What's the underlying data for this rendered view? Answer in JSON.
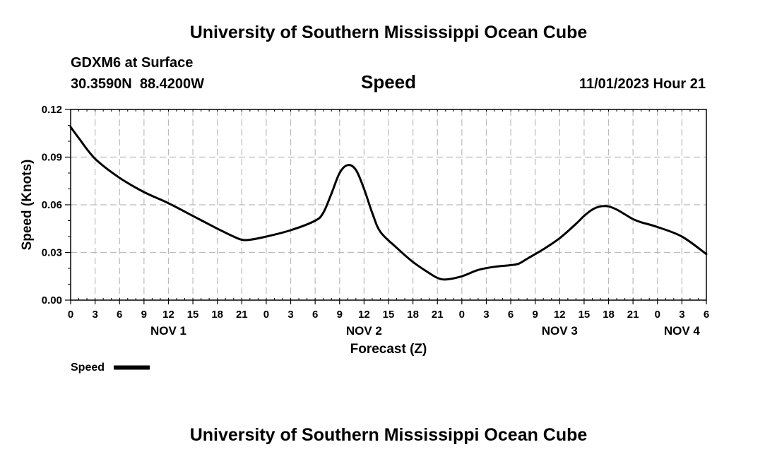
{
  "page": {
    "title": "University of Southern Mississippi Ocean Cube",
    "footer_title": "University of Southern Mississippi Ocean Cube",
    "station": "GDXM6 at Surface",
    "location": "30.3590N  88.4200W",
    "variable": "Speed",
    "run_time": "11/01/2023 Hour 21"
  },
  "chart_data": {
    "type": "line",
    "title": "Speed",
    "xlabel": "Forecast (Z)",
    "ylabel": "Speed (Knots)",
    "x_unit": "hours since Nov 1 00Z",
    "xlim": [
      0,
      78
    ],
    "ylim": [
      0,
      0.12
    ],
    "yticks": [
      "0.00",
      "0.03",
      "0.06",
      "0.09",
      "0.12"
    ],
    "ytick_values": [
      0,
      0.03,
      0.06,
      0.09,
      0.12
    ],
    "xticks": [
      "0",
      "3",
      "6",
      "9",
      "12",
      "15",
      "18",
      "21",
      "0",
      "3",
      "6",
      "9",
      "12",
      "15",
      "18",
      "21",
      "0",
      "3",
      "6",
      "9",
      "12",
      "15",
      "18",
      "21",
      "0",
      "3",
      "6"
    ],
    "day_labels": [
      {
        "label": "NOV 1",
        "hour": 12
      },
      {
        "label": "NOV 2",
        "hour": 36
      },
      {
        "label": "NOV 3",
        "hour": 60
      },
      {
        "label": "NOV 4",
        "hour": 75
      }
    ],
    "grid": true,
    "legend": "bottom-left",
    "series": [
      {
        "name": "Speed",
        "color": "#000000",
        "x": [
          0,
          1,
          3,
          6,
          9,
          12,
          15,
          18,
          20,
          21,
          22,
          24,
          27,
          30,
          31,
          32,
          33,
          34,
          35,
          36,
          37,
          38,
          40,
          42,
          44,
          45,
          46,
          48,
          50,
          52,
          54,
          55,
          56,
          58,
          60,
          62,
          63,
          64,
          65,
          66,
          67,
          68,
          69,
          70,
          72,
          75,
          78
        ],
        "values": [
          0.109,
          0.102,
          0.089,
          0.077,
          0.068,
          0.061,
          0.053,
          0.045,
          0.04,
          0.038,
          0.038,
          0.04,
          0.044,
          0.05,
          0.055,
          0.067,
          0.08,
          0.085,
          0.082,
          0.07,
          0.055,
          0.043,
          0.033,
          0.024,
          0.017,
          0.014,
          0.013,
          0.015,
          0.019,
          0.021,
          0.022,
          0.023,
          0.026,
          0.032,
          0.039,
          0.048,
          0.053,
          0.057,
          0.059,
          0.059,
          0.057,
          0.054,
          0.051,
          0.049,
          0.046,
          0.04,
          0.029
        ]
      }
    ]
  }
}
